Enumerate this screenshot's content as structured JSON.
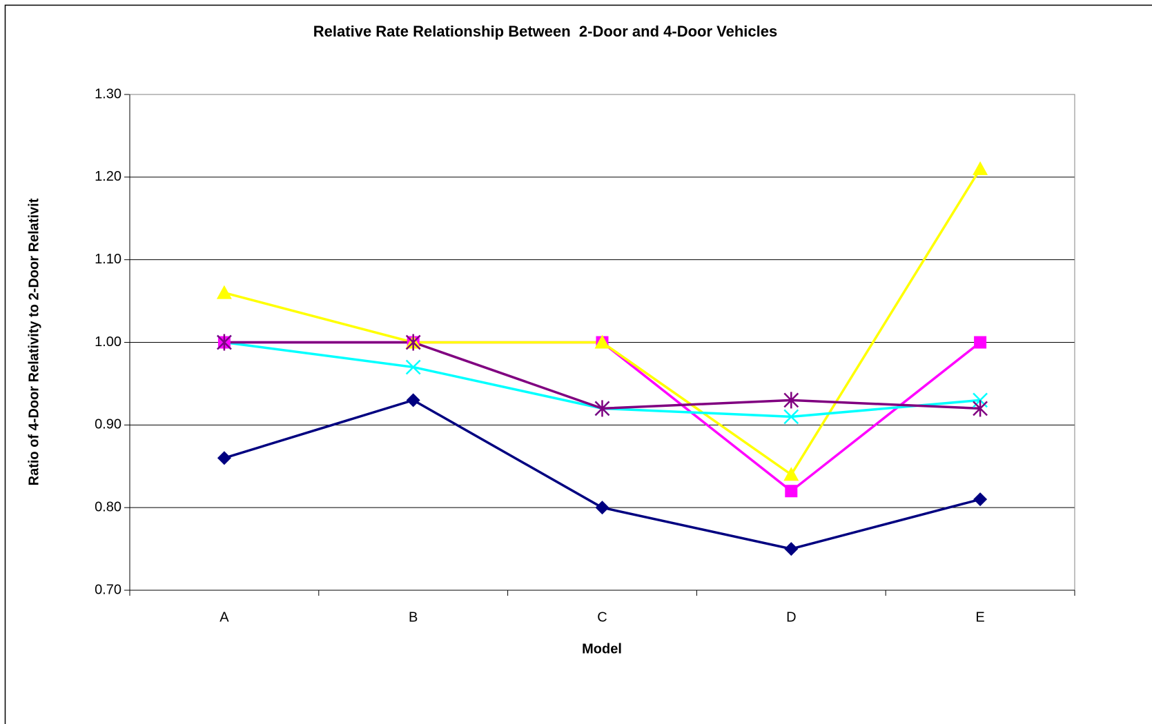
{
  "chart_data": {
    "type": "line",
    "title": "Relative Rate Relationship Between  2-Door and 4-Door Vehicles",
    "x_label": "Model",
    "y_label": "Ratio of 4-Door Relativity to 2-Door Relativit",
    "categories": [
      "A",
      "B",
      "C",
      "D",
      "E"
    ],
    "series": [
      {
        "color": "#000080",
        "marker": "diamond",
        "values": [
          0.86,
          0.93,
          0.8,
          0.75,
          0.81
        ]
      },
      {
        "color": "#ff00ff",
        "marker": "square",
        "values": [
          1.0,
          1.0,
          1.0,
          0.82,
          1.0
        ]
      },
      {
        "color": "#ffff00",
        "marker": "triangle",
        "values": [
          1.06,
          1.0,
          1.0,
          0.84,
          1.21
        ]
      },
      {
        "color": "#00ffff",
        "marker": "x",
        "values": [
          1.0,
          0.97,
          0.92,
          0.91,
          0.93
        ]
      },
      {
        "color": "#800080",
        "marker": "star",
        "values": [
          1.0,
          1.0,
          0.92,
          0.93,
          0.92
        ]
      }
    ],
    "ylim": [
      0.7,
      1.3
    ],
    "yticks": [
      {
        "value": 0.7,
        "label": "0.70"
      },
      {
        "value": 0.8,
        "label": "0.80"
      },
      {
        "value": 0.9,
        "label": "0.90"
      },
      {
        "value": 1.0,
        "label": "1.00"
      },
      {
        "value": 1.1,
        "label": "1.10"
      },
      {
        "value": 1.2,
        "label": "1.20"
      },
      {
        "value": 1.3,
        "label": "1.30"
      }
    ],
    "grid": true
  }
}
